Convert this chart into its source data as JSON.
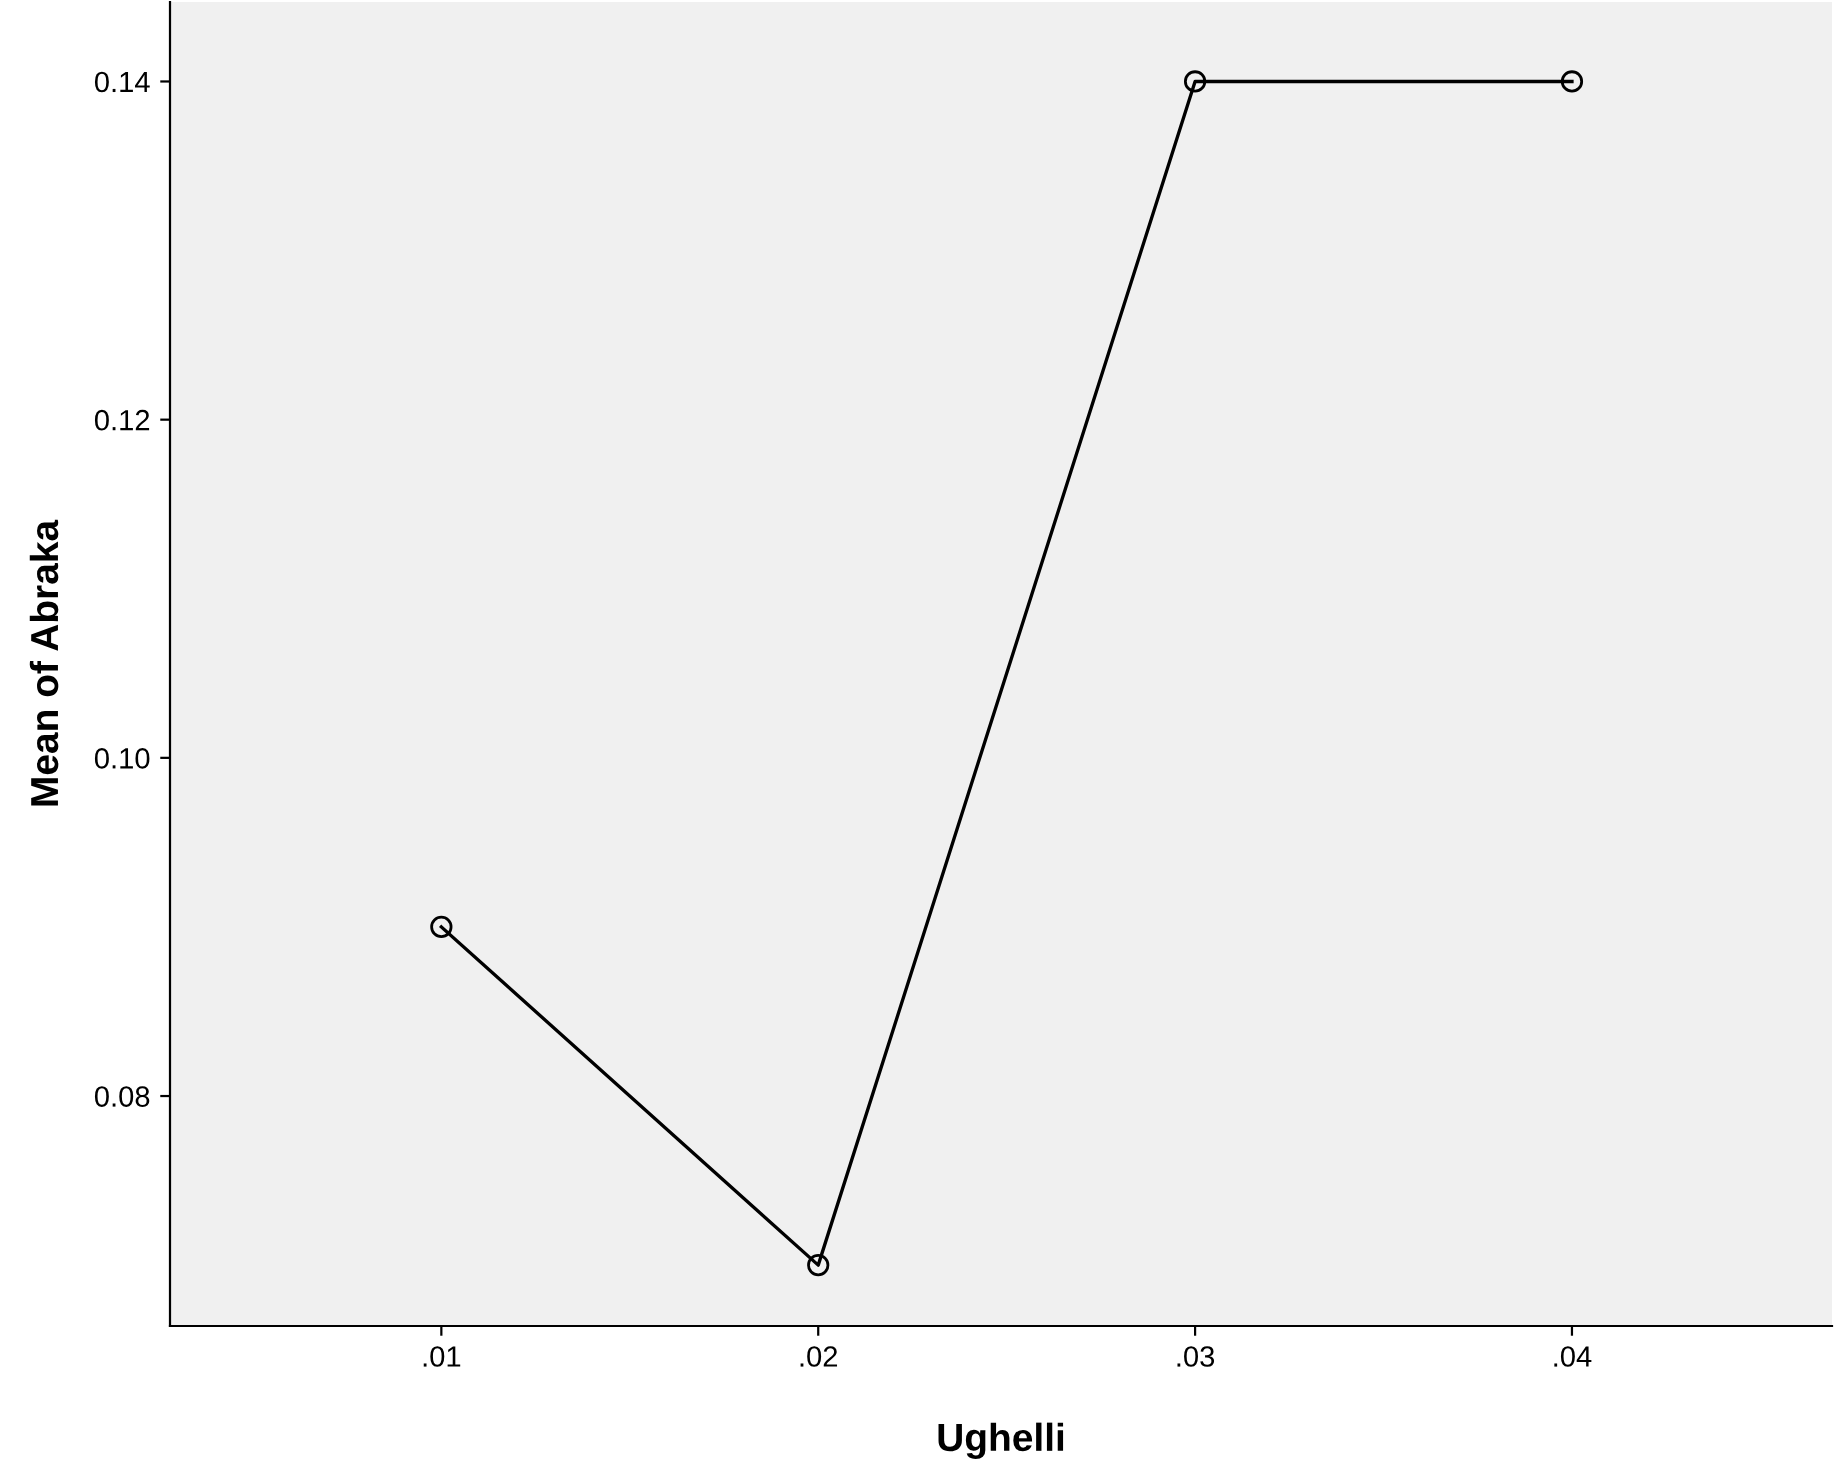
{
  "chart_data": {
    "type": "line",
    "xlabel": "Ughelli",
    "ylabel": "Mean of Abraka",
    "categories": [
      ".01",
      ".02",
      ".03",
      ".04"
    ],
    "series": [
      {
        "color": "#000000",
        "values": [
          0.09,
          0.07,
          0.14,
          0.14
        ]
      }
    ],
    "ylim": [
      0.0664,
      0.1447
    ],
    "yticks": [
      {
        "value": 0.08,
        "label": "0.08"
      },
      {
        "value": 0.1,
        "label": "0.10"
      },
      {
        "value": 0.12,
        "label": "0.12"
      },
      {
        "value": 0.14,
        "label": "0.14"
      }
    ],
    "marker": "circle",
    "line_style": "solid",
    "grid": false,
    "legend": false
  }
}
